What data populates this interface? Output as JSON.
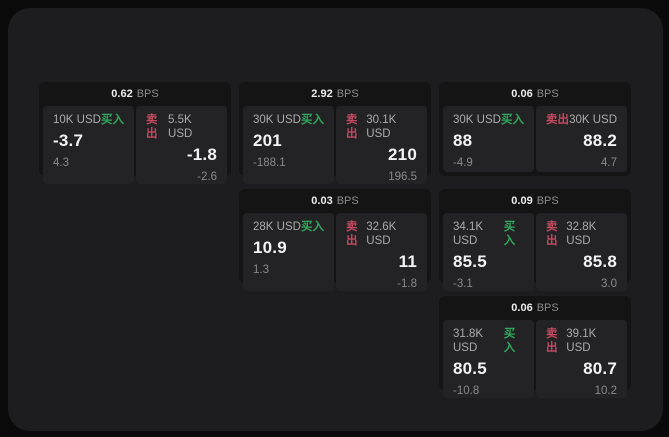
{
  "labels": {
    "buy": "买入",
    "sell": "卖出",
    "bps": "BPS"
  },
  "colors": {
    "buy": "#30a95c",
    "sell": "#c44a60",
    "window_bg": "#1d1d1f",
    "card_bg": "#141415",
    "panel_bg": "#232325"
  },
  "cards": [
    {
      "row": 1,
      "col": 1,
      "bps": "0.62",
      "buy": {
        "size": "10K USD",
        "price": "-3.7",
        "delta": "4.3"
      },
      "sell": {
        "size": "5.5K USD",
        "price": "-1.8",
        "delta": "-2.6"
      }
    },
    {
      "row": 1,
      "col": 2,
      "bps": "2.92",
      "buy": {
        "size": "30K USD",
        "price": "201",
        "delta": "-188.1"
      },
      "sell": {
        "size": "30.1K USD",
        "price": "210",
        "delta": "196.5"
      }
    },
    {
      "row": 1,
      "col": 3,
      "bps": "0.06",
      "buy": {
        "size": "30K USD",
        "price": "88",
        "delta": "-4.9"
      },
      "sell": {
        "size": "30K USD",
        "price": "88.2",
        "delta": "4.7"
      }
    },
    {
      "row": 2,
      "col": 2,
      "bps": "0.03",
      "buy": {
        "size": "28K USD",
        "price": "10.9",
        "delta": "1.3"
      },
      "sell": {
        "size": "32.6K USD",
        "price": "11",
        "delta": "-1.8"
      }
    },
    {
      "row": 2,
      "col": 3,
      "bps": "0.09",
      "buy": {
        "size": "34.1K USD",
        "price": "85.5",
        "delta": "-3.1"
      },
      "sell": {
        "size": "32.8K USD",
        "price": "85.8",
        "delta": "3.0"
      }
    },
    {
      "row": 3,
      "col": 3,
      "bps": "0.06",
      "buy": {
        "size": "31.8K USD",
        "price": "80.5",
        "delta": "-10.8"
      },
      "sell": {
        "size": "39.1K USD",
        "price": "80.7",
        "delta": "10.2"
      }
    }
  ]
}
